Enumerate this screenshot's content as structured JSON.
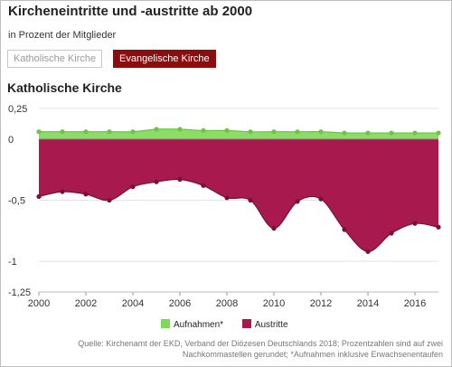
{
  "header": {
    "title": "Kircheneintritte und -austritte ab 2000",
    "subtitle": "in Prozent der Mitglieder"
  },
  "tabs": [
    {
      "label": "Katholische Kirche",
      "active": false
    },
    {
      "label": "Evangelische Kirche",
      "active": true
    }
  ],
  "section_title": "Katholische Kirche",
  "colors": {
    "aufnahmen": "#7ed957",
    "aufnahmen_line": "#6cc443",
    "austritte": "#a8194e",
    "austritte_line": "#7a0f38",
    "tab_active": "#8b0d0d"
  },
  "chart_data": {
    "type": "area",
    "x": [
      2000,
      2001,
      2002,
      2003,
      2004,
      2005,
      2006,
      2007,
      2008,
      2009,
      2010,
      2011,
      2012,
      2013,
      2014,
      2015,
      2016,
      2017
    ],
    "series": [
      {
        "name": "Aufnahmen*",
        "values": [
          0.06,
          0.06,
          0.06,
          0.06,
          0.06,
          0.08,
          0.08,
          0.07,
          0.07,
          0.06,
          0.06,
          0.06,
          0.06,
          0.05,
          0.05,
          0.05,
          0.05,
          0.05
        ]
      },
      {
        "name": "Austritte",
        "values": [
          -0.47,
          -0.43,
          -0.45,
          -0.5,
          -0.39,
          -0.35,
          -0.33,
          -0.38,
          -0.48,
          -0.5,
          -0.73,
          -0.51,
          -0.49,
          -0.74,
          -0.92,
          -0.77,
          -0.69,
          -0.72
        ]
      }
    ],
    "ylim": [
      -1.25,
      0.25
    ],
    "xlim": [
      2000,
      2017
    ],
    "y_ticks": [
      "0,25",
      "0",
      "-0,5",
      "-1",
      "-1,25"
    ],
    "y_tick_values": [
      0.25,
      0,
      -0.5,
      -1,
      -1.25
    ],
    "x_ticks": [
      "2000",
      "2002",
      "2004",
      "2006",
      "2008",
      "2010",
      "2012",
      "2014",
      "2016"
    ],
    "x_tick_values": [
      2000,
      2002,
      2004,
      2006,
      2008,
      2010,
      2012,
      2014,
      2016
    ],
    "grid": true,
    "legend_position": "bottom"
  },
  "legend": [
    {
      "label": "Aufnahmen*"
    },
    {
      "label": "Austritte"
    }
  ],
  "source": "Quelle: Kirchenamt der EKD, Verband der Diözesen Deutschlands 2018; Prozentzahlen sind auf zwei Nachkommastellen gerundet; *Aufnahmen inklusive Erwachsenentaufen"
}
